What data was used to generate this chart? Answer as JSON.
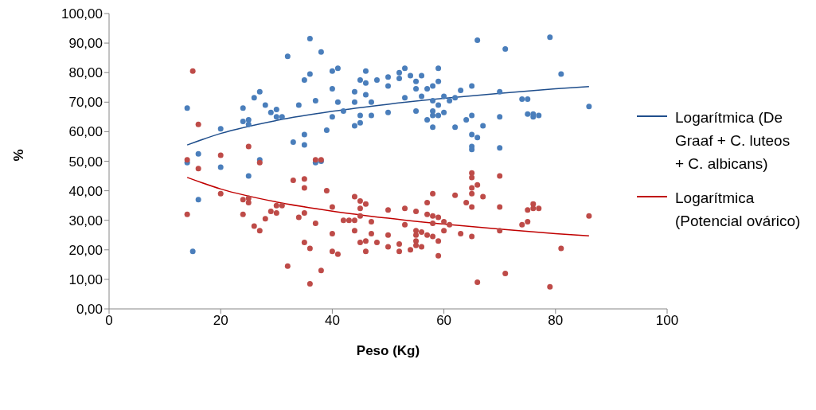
{
  "chart_data": {
    "type": "scatter",
    "xlabel": "Peso (Kg)",
    "ylabel": "%",
    "xlim": [
      0,
      100
    ],
    "xticks": [
      0,
      20,
      40,
      60,
      80,
      100
    ],
    "ylim": [
      0,
      100
    ],
    "yticks": [
      {
        "value": 0,
        "label": "0,00"
      },
      {
        "value": 10,
        "label": "10,00"
      },
      {
        "value": 20,
        "label": "20,00"
      },
      {
        "value": 30,
        "label": "30,00"
      },
      {
        "value": 40,
        "label": "40,00"
      },
      {
        "value": 50,
        "label": "50,00"
      },
      {
        "value": 60,
        "label": "60,00"
      },
      {
        "value": 70,
        "label": "70,00"
      },
      {
        "value": 80,
        "label": "80,00"
      },
      {
        "value": 90,
        "label": "90,00"
      },
      {
        "value": 100,
        "label": "100,00"
      }
    ],
    "grid": false,
    "legend": "right",
    "series": [
      {
        "marker": "circle",
        "color": "#4a7ebb",
        "x": [
          14,
          14,
          15,
          16,
          16,
          20,
          20,
          24,
          24,
          25,
          25,
          25,
          26,
          27,
          27,
          28,
          29,
          30,
          30,
          31,
          32,
          33,
          34,
          35,
          35,
          35,
          36,
          36,
          37,
          37,
          38,
          38,
          39,
          40,
          40,
          40,
          41,
          41,
          42,
          44,
          44,
          44,
          45,
          45,
          45,
          46,
          46,
          46,
          47,
          47,
          48,
          50,
          50,
          50,
          52,
          52,
          53,
          53,
          54,
          55,
          55,
          55,
          56,
          56,
          57,
          57,
          58,
          58,
          58,
          58,
          58,
          59,
          59,
          59,
          59,
          60,
          60,
          61,
          62,
          62,
          63,
          64,
          65,
          65,
          65,
          65,
          65,
          66,
          66,
          67,
          70,
          70,
          70,
          71,
          74,
          75,
          75,
          76,
          76,
          77,
          79,
          81,
          86
        ],
        "values": [
          68,
          49.5,
          19.5,
          52.5,
          37,
          61,
          48,
          68,
          63.5,
          64,
          62.5,
          45,
          71.5,
          73.5,
          50.5,
          69,
          66.5,
          65,
          67.5,
          65,
          85.5,
          56.5,
          69,
          77.5,
          59,
          55.5,
          91.5,
          79.5,
          70.5,
          49.5,
          87,
          50,
          60.5,
          80.5,
          74.5,
          65,
          81.5,
          70,
          67,
          73.5,
          70,
          62,
          77.5,
          65.5,
          63,
          80.5,
          76.5,
          72.5,
          65.5,
          70,
          77.5,
          78.5,
          75.5,
          66.5,
          80,
          78,
          81.5,
          71.5,
          79,
          77,
          74.5,
          67,
          79,
          72,
          74.5,
          64,
          75.5,
          70.5,
          67,
          65.5,
          61.5,
          81.5,
          77,
          69,
          65.5,
          72,
          66.5,
          70.5,
          61.5,
          71.5,
          74,
          64,
          75.5,
          65.5,
          59,
          55,
          54,
          58,
          91,
          62,
          73.5,
          65,
          54.5,
          88,
          71,
          71,
          66,
          65,
          66,
          65.5,
          92,
          79.5,
          68.5
        ]
      },
      {
        "marker": "circle",
        "color": "#be4b48",
        "x": [
          14,
          14,
          15,
          16,
          16,
          20,
          20,
          24,
          24,
          25,
          25,
          25,
          26,
          27,
          27,
          28,
          29,
          30,
          30,
          31,
          32,
          33,
          34,
          35,
          35,
          35,
          35,
          36,
          36,
          37,
          37,
          38,
          38,
          39,
          40,
          40,
          40,
          41,
          42,
          43,
          44,
          44,
          44,
          45,
          45,
          45,
          45,
          46,
          46,
          46,
          47,
          47,
          48,
          50,
          50,
          50,
          52,
          52,
          53,
          53,
          54,
          55,
          55,
          55,
          55,
          55,
          56,
          56,
          57,
          57,
          57,
          58,
          58,
          58,
          58,
          59,
          59,
          59,
          60,
          60,
          61,
          62,
          63,
          64,
          65,
          65,
          65,
          65,
          65,
          65,
          66,
          66,
          67,
          70,
          70,
          70,
          71,
          74,
          75,
          75,
          76,
          76,
          77,
          79,
          81,
          86
        ],
        "values": [
          50.5,
          32,
          80.5,
          62.5,
          47.5,
          52,
          39,
          37,
          32,
          55,
          37.5,
          36,
          28,
          49.5,
          26.5,
          30.5,
          33,
          35,
          32.5,
          35,
          14.5,
          43.5,
          31,
          44,
          41,
          32.5,
          22.5,
          8.5,
          20.5,
          29,
          50.5,
          50.5,
          13,
          40,
          34.5,
          25.5,
          19.5,
          18.5,
          30,
          30,
          38,
          30,
          26.5,
          36.5,
          34,
          31.5,
          22.5,
          35.5,
          23,
          19.5,
          29.5,
          25.5,
          22.5,
          33.5,
          25,
          21,
          22,
          19.5,
          34,
          28.5,
          20,
          33,
          26.5,
          25,
          23,
          21.5,
          26,
          21,
          36,
          32,
          25,
          39,
          31.5,
          29,
          24.5,
          31,
          23,
          18,
          29.5,
          26.5,
          28.5,
          38.5,
          25.5,
          36,
          46,
          44.5,
          41,
          39,
          34.5,
          24.5,
          42,
          9,
          38,
          45,
          34.5,
          26.5,
          12,
          28.5,
          29.5,
          33.5,
          35.5,
          34,
          34,
          7.5,
          20.5,
          31.5
        ]
      },
      {
        "type": "line",
        "name": "Logarítmica (De Graaf + C. luteos + C. albicans)",
        "color": "#1f4e8c",
        "marker": "none",
        "x": [
          14,
          20,
          30,
          40,
          50,
          60,
          70,
          80,
          86
        ],
        "values": [
          55.5,
          59.4,
          63.8,
          66.9,
          69.3,
          71.3,
          73,
          74.5,
          75.3
        ]
      },
      {
        "type": "line",
        "name": "Logarítmica (Potencial ovárico)",
        "color": "#c00000",
        "marker": "none",
        "x": [
          14,
          20,
          30,
          40,
          50,
          60,
          70,
          80,
          86
        ],
        "values": [
          44.5,
          40.6,
          36.2,
          33.1,
          30.7,
          28.7,
          27,
          25.5,
          24.7
        ]
      }
    ]
  }
}
